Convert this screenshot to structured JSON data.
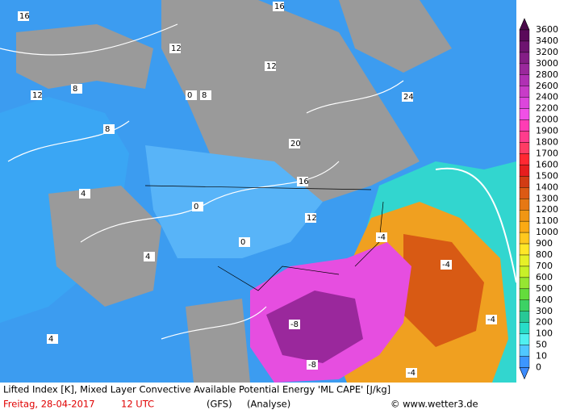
{
  "footer": {
    "line1": "Lifted Index [K], Mixed Layer Convective Available Potential Energy 'ML CAPE' [J/kg]",
    "date": "Freitag, 28-04-2017",
    "time": "12 UTC",
    "model": "(GFS)",
    "run": "(Analyse)",
    "credit": "© www.wetter3.de"
  },
  "colorbar": {
    "labels": [
      3600,
      3400,
      3200,
      3000,
      2800,
      2600,
      2400,
      2200,
      2000,
      1900,
      1800,
      1700,
      1600,
      1500,
      1400,
      1300,
      1200,
      1100,
      1000,
      900,
      800,
      700,
      600,
      500,
      400,
      300,
      200,
      100,
      50,
      10,
      0
    ]
  },
  "map_labels": [
    "16",
    "16",
    "12",
    "12",
    "8",
    "8",
    "4",
    "4",
    "0",
    "0",
    "20",
    "24",
    "16",
    "12",
    "-4",
    "-4",
    "-4",
    "-8",
    "-8",
    "-4",
    "0",
    "4",
    "8",
    "12"
  ]
}
